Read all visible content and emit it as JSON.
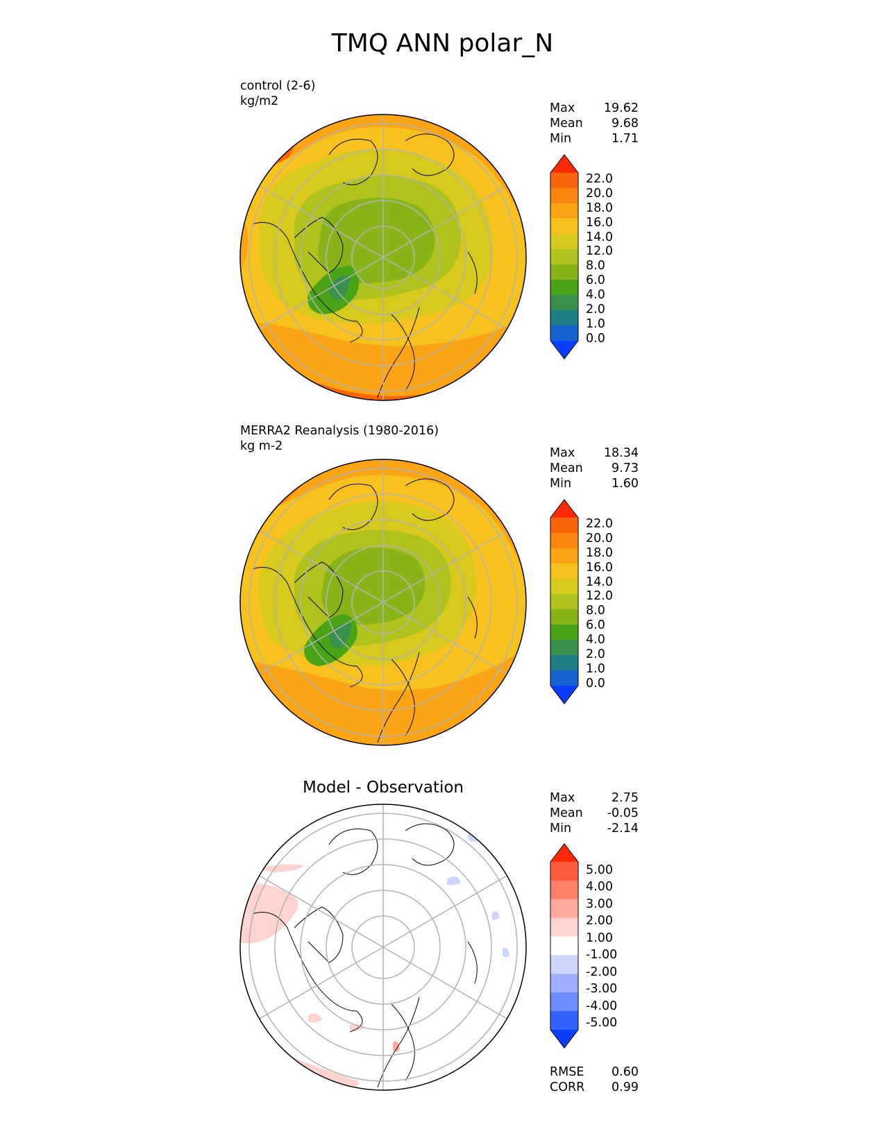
{
  "title": "TMQ ANN polar_N",
  "colors": {
    "abs_levels": [
      "#0a3dff",
      "#1462cc",
      "#1e7f86",
      "#3b8f4c",
      "#4aa315",
      "#88b41a",
      "#b0c21e",
      "#d8c91f",
      "#f7c21e",
      "#fba516",
      "#fb850f",
      "#f9650b",
      "#ff2a05"
    ],
    "diff_levels": [
      "#0a3dff",
      "#3362ff",
      "#6f8bff",
      "#9eafff",
      "#cdd6ff",
      "#ffffff",
      "#ffd3cf",
      "#ffaa9c",
      "#ff8069",
      "#ff5b3c",
      "#ff2a05"
    ],
    "land_outline": "#000000",
    "gridline": "#b3b3b3"
  },
  "panels": [
    {
      "label_line1": "control (2-6)",
      "label_line2": "kg/m2",
      "stats": [
        {
          "label": "Max",
          "value": "19.62"
        },
        {
          "label": "Mean",
          "value": "9.68"
        },
        {
          "label": "Min",
          "value": "1.71"
        }
      ],
      "colorbar_ticks": [
        "22.0",
        "20.0",
        "18.0",
        "16.0",
        "14.0",
        "12.0",
        "8.0",
        "6.0",
        "4.0",
        "2.0",
        "1.0",
        "0.0"
      ]
    },
    {
      "label_line1": "MERRA2 Reanalysis (1980-2016)",
      "label_line2": "kg m-2",
      "stats": [
        {
          "label": "Max",
          "value": "18.34"
        },
        {
          "label": "Mean",
          "value": "9.73"
        },
        {
          "label": "Min",
          "value": "1.60"
        }
      ],
      "colorbar_ticks": [
        "22.0",
        "20.0",
        "18.0",
        "16.0",
        "14.0",
        "12.0",
        "8.0",
        "6.0",
        "4.0",
        "2.0",
        "1.0",
        "0.0"
      ]
    },
    {
      "title": "Model - Observation",
      "stats": [
        {
          "label": "Max",
          "value": "2.75"
        },
        {
          "label": "Mean",
          "value": "-0.05"
        },
        {
          "label": "Min",
          "value": "-2.14"
        }
      ],
      "colorbar_ticks": [
        "5.00",
        "4.00",
        "3.00",
        "2.00",
        "1.00",
        "-1.00",
        "-2.00",
        "-3.00",
        "-4.00",
        "-5.00"
      ],
      "metrics": [
        {
          "label": "RMSE",
          "value": "0.60"
        },
        {
          "label": "CORR",
          "value": "0.99"
        }
      ]
    }
  ]
}
